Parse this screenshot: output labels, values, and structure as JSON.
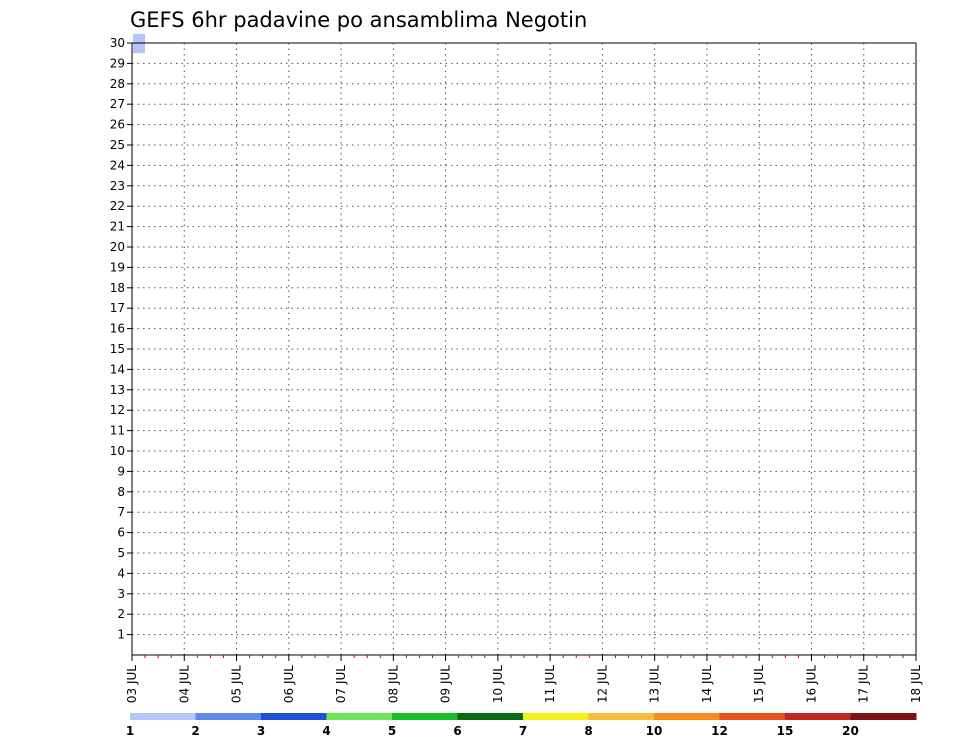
{
  "chart_data": {
    "type": "heatmap",
    "title": "GEFS 6hr padavine po ansamblima Negotin",
    "xlabel": "",
    "ylabel": "",
    "x_tick_labels": [
      "03 JUL",
      "04 JUL",
      "05 JUL",
      "06 JUL",
      "07 JUL",
      "08 JUL",
      "09 JUL",
      "10 JUL",
      "11 JUL",
      "12 JUL",
      "13 JUL",
      "14 JUL",
      "15 JUL",
      "16 JUL",
      "17 JUL",
      "18 JUL"
    ],
    "y_tick_labels": [
      "1",
      "2",
      "3",
      "4",
      "5",
      "6",
      "7",
      "8",
      "9",
      "10",
      "11",
      "12",
      "13",
      "14",
      "15",
      "16",
      "17",
      "18",
      "19",
      "20",
      "21",
      "22",
      "23",
      "24",
      "25",
      "26",
      "27",
      "28",
      "29",
      "30"
    ],
    "ylim": [
      0,
      30
    ],
    "x_steps_per_day": 4,
    "grid": true,
    "colorbar": {
      "labels": [
        "1",
        "2",
        "3",
        "4",
        "5",
        "6",
        "7",
        "8",
        "10",
        "12",
        "15",
        "20"
      ],
      "colors": [
        "#b3c6f5",
        "#5e8ae8",
        "#1e4fd8",
        "#6ee65a",
        "#19be24",
        "#0a6b14",
        "#f2f21a",
        "#f7ba3c",
        "#f48c1e",
        "#e8501e",
        "#c02a1e",
        "#7d1014"
      ]
    },
    "points": [
      {
        "x": 0,
        "y": 30,
        "c": 1
      }
    ]
  }
}
